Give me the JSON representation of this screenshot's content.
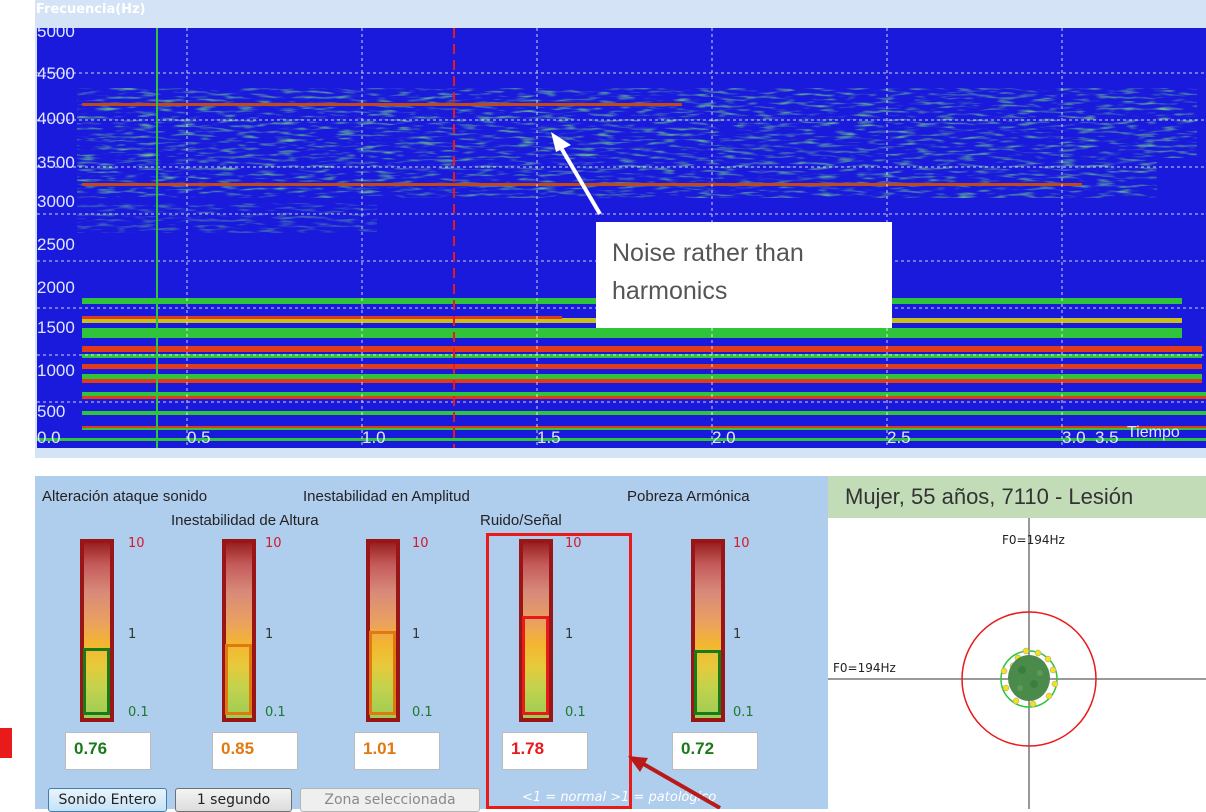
{
  "spectrogram": {
    "title": "Frecuencia(Hz)",
    "y_ticks": [
      "5000",
      "4500",
      "4000",
      "3500",
      "3000",
      "2500",
      "2000",
      "1500",
      "1000",
      "500"
    ],
    "x_ticks": [
      "0.0",
      "0.5",
      "1.0",
      "1.5",
      "2.0",
      "2.5",
      "3.0",
      "3.5"
    ],
    "x_label": "Tiempo"
  },
  "annotation": {
    "text": "Noise rather than harmonics"
  },
  "meters": {
    "top_labels": [
      "Alteración ataque sonido",
      "Inestabilidad en Amplitud",
      "Pobreza Armónica"
    ],
    "second_labels": [
      "Inestabilidad de Altura",
      "Ruido/Señal"
    ],
    "scale": {
      "top": "10",
      "mid": "1",
      "bottom": "0.1"
    },
    "items": [
      {
        "value": "0.76",
        "color": "#1a7a1a",
        "level": 0.76
      },
      {
        "value": "0.85",
        "color": "#e07a10",
        "level": 0.85
      },
      {
        "value": "1.01",
        "color": "#e07a10",
        "level": 1.01
      },
      {
        "value": "1.78",
        "color": "#e81a1a",
        "level": 1.78
      },
      {
        "value": "0.72",
        "color": "#1a7a1a",
        "level": 0.72
      }
    ],
    "buttons": {
      "whole": "Sonido Entero",
      "one_second": "1 segundo",
      "selection": "Zona seleccionada"
    },
    "legend": "<1 = normal  >1 = patológico"
  },
  "patient": {
    "title": "Mujer, 55 años, 7110 -  Lesión",
    "f0_top": "F0=194Hz",
    "f0_left": "F0=194Hz"
  },
  "colors": {
    "spectrogram_bg": "#1a1adc",
    "highlight": "#e81a1a"
  }
}
